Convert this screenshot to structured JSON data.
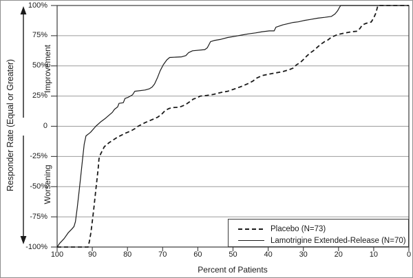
{
  "figure": {
    "y_axis_title": "Responder Rate (Equal or Greater)",
    "y_axis_upper_label": "Improvement",
    "y_axis_lower_label": "Worsening",
    "x_axis_title": "Percent of Patients",
    "colors": {
      "background": "#ffffff",
      "text": "#1a1a1a",
      "frame": "#3a3a3a",
      "gridline": "#9b9b9b",
      "curve": "#1a1a1a",
      "image_border": "#8e8e8e"
    }
  },
  "chart_data": {
    "type": "line",
    "title": "",
    "xlabel": "Percent of Patients",
    "ylabel": "Responder Rate (Equal or Greater)",
    "xlim": [
      100,
      0
    ],
    "ylim": [
      -100,
      100
    ],
    "x_ticks": [
      100,
      90,
      80,
      70,
      60,
      50,
      40,
      30,
      20,
      10,
      0
    ],
    "y_tick_values": [
      100,
      75,
      50,
      25,
      0,
      -25,
      -50,
      -75,
      -100
    ],
    "y_tick_labels": [
      "100%",
      "75%",
      "50%",
      "25%",
      "0",
      "-25%",
      "-50%",
      "-75%",
      "-100%"
    ],
    "grid": "horizontal",
    "legend_position": "bottom-right-box",
    "series": [
      {
        "name": "Lamotrigine Extended-Release (N=70)",
        "style": "solid",
        "points": [
          [
            100,
            -100
          ],
          [
            99.3,
            -97
          ],
          [
            98,
            -93
          ],
          [
            96.8,
            -88
          ],
          [
            95.8,
            -85
          ],
          [
            95.2,
            -83
          ],
          [
            94.8,
            -79
          ],
          [
            94.3,
            -68
          ],
          [
            93.8,
            -55
          ],
          [
            93.3,
            -42
          ],
          [
            92.8,
            -28
          ],
          [
            92.3,
            -15
          ],
          [
            91.8,
            -8
          ],
          [
            90.5,
            -5
          ],
          [
            89,
            0
          ],
          [
            87.7,
            3.5
          ],
          [
            86.3,
            6.5
          ],
          [
            85.3,
            9
          ],
          [
            84.3,
            11.5
          ],
          [
            83.7,
            14
          ],
          [
            82.8,
            16
          ],
          [
            82.4,
            19
          ],
          [
            81.2,
            19.5
          ],
          [
            80.7,
            23
          ],
          [
            79.8,
            24
          ],
          [
            78.6,
            26
          ],
          [
            77.9,
            29
          ],
          [
            75,
            30
          ],
          [
            73.8,
            31
          ],
          [
            73,
            32.5
          ],
          [
            72.3,
            35
          ],
          [
            71.5,
            40
          ],
          [
            70.7,
            46
          ],
          [
            69.8,
            51
          ],
          [
            68.8,
            55
          ],
          [
            68,
            57
          ],
          [
            64.6,
            57.5
          ],
          [
            63.4,
            58.5
          ],
          [
            62.6,
            61
          ],
          [
            61.5,
            62.5
          ],
          [
            58,
            63.5
          ],
          [
            57.3,
            65
          ],
          [
            56.4,
            70
          ],
          [
            55.4,
            71
          ],
          [
            53.4,
            72
          ],
          [
            51.5,
            73.5
          ],
          [
            49.5,
            74.5
          ],
          [
            47.6,
            75.5
          ],
          [
            45.6,
            76.5
          ],
          [
            43.6,
            77.3
          ],
          [
            41.7,
            78.3
          ],
          [
            39.7,
            79
          ],
          [
            38.3,
            79
          ],
          [
            37.8,
            82
          ],
          [
            35.8,
            84
          ],
          [
            34.3,
            85
          ],
          [
            32.9,
            86
          ],
          [
            31.4,
            86.5
          ],
          [
            29.9,
            87.5
          ],
          [
            27.9,
            88.5
          ],
          [
            25.9,
            89.5
          ],
          [
            23.9,
            90.2
          ],
          [
            22,
            91
          ],
          [
            21,
            93
          ],
          [
            20.3,
            95.5
          ],
          [
            19.7,
            98.5
          ],
          [
            19.4,
            100
          ],
          [
            0,
            100
          ]
        ]
      },
      {
        "name": "Placebo (N=73)",
        "style": "dashed",
        "points": [
          [
            100,
            -100
          ],
          [
            91.2,
            -100
          ],
          [
            90.8,
            -95
          ],
          [
            90.4,
            -88
          ],
          [
            90.1,
            -81
          ],
          [
            89.8,
            -74
          ],
          [
            89.5,
            -66
          ],
          [
            89.2,
            -58
          ],
          [
            88.9,
            -50
          ],
          [
            88.6,
            -42
          ],
          [
            88.3,
            -34
          ],
          [
            88.1,
            -27
          ],
          [
            87.8,
            -24
          ],
          [
            87.3,
            -21
          ],
          [
            86.6,
            -17
          ],
          [
            86,
            -15.5
          ],
          [
            85.2,
            -13.5
          ],
          [
            84.4,
            -12
          ],
          [
            83.6,
            -10.5
          ],
          [
            82.7,
            -8.8
          ],
          [
            81.8,
            -7.5
          ],
          [
            80.8,
            -6
          ],
          [
            79.8,
            -4.8
          ],
          [
            78.8,
            -3.5
          ],
          [
            77.9,
            -2
          ],
          [
            77,
            0
          ],
          [
            76,
            1.5
          ],
          [
            75,
            3
          ],
          [
            73.8,
            4.5
          ],
          [
            72.6,
            6
          ],
          [
            71.4,
            7.5
          ],
          [
            70.3,
            10
          ],
          [
            69.3,
            13
          ],
          [
            68.2,
            14.7
          ],
          [
            67.2,
            15.5
          ],
          [
            65.3,
            15.7
          ],
          [
            64.2,
            17
          ],
          [
            63.2,
            18.5
          ],
          [
            62.2,
            20.5
          ],
          [
            61.3,
            22.5
          ],
          [
            60.3,
            23.5
          ],
          [
            59.3,
            25
          ],
          [
            57.4,
            25.5
          ],
          [
            55.4,
            26.5
          ],
          [
            53.4,
            28
          ],
          [
            51.5,
            29
          ],
          [
            49.5,
            31
          ],
          [
            47.6,
            33
          ],
          [
            45.6,
            35.5
          ],
          [
            44.3,
            37.5
          ],
          [
            43.2,
            40
          ],
          [
            41.7,
            42
          ],
          [
            39.7,
            43.2
          ],
          [
            37.8,
            44.2
          ],
          [
            35.8,
            45.3
          ],
          [
            33.9,
            47
          ],
          [
            32.9,
            48.2
          ],
          [
            31.9,
            51
          ],
          [
            30.9,
            52.7
          ],
          [
            29.9,
            55.5
          ],
          [
            28.9,
            58.5
          ],
          [
            27.9,
            61
          ],
          [
            26.9,
            63
          ],
          [
            25.9,
            65.8
          ],
          [
            25,
            68
          ],
          [
            24,
            70
          ],
          [
            23,
            71.5
          ],
          [
            22,
            73.8
          ],
          [
            20.2,
            76
          ],
          [
            18.2,
            77.2
          ],
          [
            16.2,
            78.3
          ],
          [
            14.7,
            78.7
          ],
          [
            13.9,
            81
          ],
          [
            13.2,
            84
          ],
          [
            12.2,
            85.2
          ],
          [
            11.3,
            86
          ],
          [
            10.7,
            86.3
          ],
          [
            10,
            89.7
          ],
          [
            9.4,
            93.7
          ],
          [
            8.8,
            100
          ],
          [
            0,
            100
          ]
        ]
      }
    ]
  }
}
